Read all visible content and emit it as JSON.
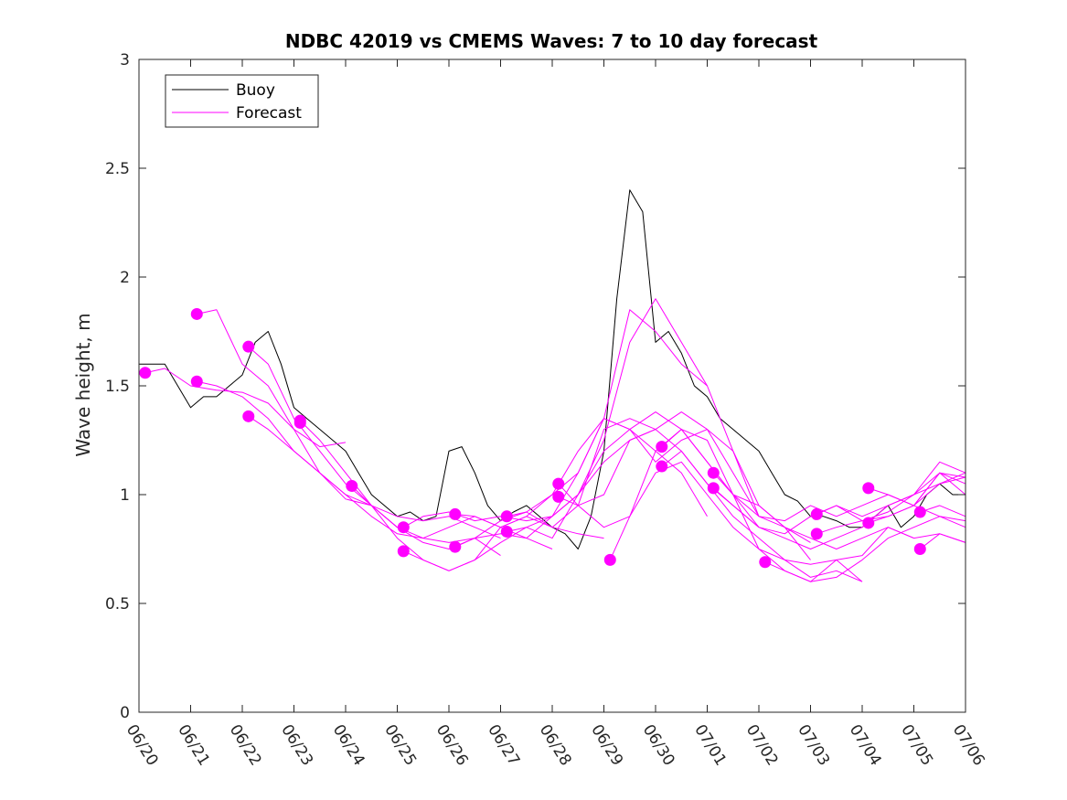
{
  "chart_data": {
    "type": "line",
    "title": "NDBC 42019 vs CMEMS Waves: 7 to 10 day forecast",
    "xlabel": "",
    "ylabel": "Wave height, m",
    "ylim": [
      0,
      3
    ],
    "yticks": [
      "0",
      "0.5",
      "1",
      "1.5",
      "2",
      "2.5",
      "3"
    ],
    "xlim_days": [
      0,
      16
    ],
    "xticks": [
      "06/20",
      "06/21",
      "06/22",
      "06/23",
      "06/24",
      "06/25",
      "06/26",
      "06/27",
      "06/28",
      "06/29",
      "06/30",
      "07/01",
      "07/02",
      "07/03",
      "07/04",
      "07/05",
      "07/06"
    ],
    "grid": false,
    "legend": {
      "position": "top-left",
      "entries": [
        "Buoy",
        "Forecast"
      ]
    },
    "colors": {
      "buoy": "#000000",
      "forecast": "#ff00ff",
      "axes": "#262626"
    },
    "series": [
      {
        "name": "Buoy",
        "x": [
          0,
          0.25,
          0.5,
          0.75,
          1.0,
          1.25,
          1.5,
          1.75,
          2.0,
          2.25,
          2.5,
          2.75,
          3.0,
          3.25,
          3.5,
          3.75,
          4.0,
          4.25,
          4.5,
          4.75,
          5.0,
          5.25,
          5.5,
          5.75,
          6.0,
          6.25,
          6.5,
          6.75,
          7.0,
          7.25,
          7.5,
          7.75,
          8.0,
          8.25,
          8.5,
          8.75,
          9.0,
          9.25,
          9.5,
          9.75,
          10.0,
          10.25,
          10.5,
          10.75,
          11.0,
          11.25,
          11.5,
          11.75,
          12.0,
          12.25,
          12.5,
          12.75,
          13.0,
          13.25,
          13.5,
          13.75,
          14.0,
          14.25,
          14.5,
          14.75,
          15.0,
          15.25,
          15.5,
          15.75,
          16.0
        ],
        "values": [
          1.6,
          1.6,
          1.6,
          1.5,
          1.4,
          1.45,
          1.45,
          1.5,
          1.55,
          1.7,
          1.75,
          1.6,
          1.4,
          1.35,
          1.3,
          1.25,
          1.2,
          1.1,
          1.0,
          0.95,
          0.9,
          0.92,
          0.88,
          0.9,
          1.2,
          1.22,
          1.1,
          0.95,
          0.88,
          0.92,
          0.95,
          0.9,
          0.85,
          0.82,
          0.75,
          0.9,
          1.2,
          1.9,
          2.4,
          2.3,
          1.7,
          1.75,
          1.65,
          1.5,
          1.45,
          1.35,
          1.3,
          1.25,
          1.2,
          1.1,
          1.0,
          0.97,
          0.9,
          0.9,
          0.88,
          0.85,
          0.85,
          0.9,
          0.95,
          0.85,
          0.9,
          1.0,
          1.05,
          1.0,
          1.0
        ]
      },
      {
        "name": "Forecast",
        "x": [
          0.12,
          0.5,
          1.0,
          1.5,
          2.0,
          2.5,
          3.0,
          3.5,
          4.0
        ],
        "values": [
          1.56,
          1.58,
          1.5,
          1.48,
          1.47,
          1.42,
          1.3,
          1.22,
          1.24
        ]
      },
      {
        "name": "Forecast",
        "x": [
          1.12,
          1.5,
          2.0,
          2.5,
          3.0,
          3.5,
          4.0,
          4.5,
          5.0
        ],
        "values": [
          1.83,
          1.85,
          1.6,
          1.5,
          1.3,
          1.1,
          0.98,
          0.95,
          0.85
        ]
      },
      {
        "name": "Forecast",
        "x": [
          1.12,
          1.5,
          2.0,
          2.5,
          3.0,
          3.5,
          4.0,
          4.5,
          5.0,
          5.5,
          6.0,
          6.5,
          7.0
        ],
        "values": [
          1.52,
          1.5,
          1.45,
          1.35,
          1.2,
          1.1,
          1.0,
          0.95,
          0.9,
          0.88,
          0.9,
          0.85,
          0.8
        ]
      },
      {
        "name": "Forecast",
        "x": [
          2.12,
          2.5,
          3.0,
          3.5,
          4.0,
          4.5,
          5.0,
          5.5,
          6.0,
          6.5,
          7.0
        ],
        "values": [
          1.68,
          1.6,
          1.35,
          1.2,
          1.05,
          0.95,
          0.85,
          0.8,
          0.78,
          0.8,
          0.72
        ]
      },
      {
        "name": "Forecast",
        "x": [
          2.12,
          2.5,
          3.0,
          3.5,
          4.0,
          4.5,
          5.0,
          5.5,
          6.0,
          6.5,
          7.0,
          7.5,
          8.0
        ],
        "values": [
          1.36,
          1.3,
          1.2,
          1.1,
          1.0,
          0.9,
          0.82,
          0.8,
          0.85,
          0.9,
          0.85,
          0.8,
          0.75
        ]
      },
      {
        "name": "Forecast",
        "x": [
          3.12,
          3.5,
          4.0,
          4.5,
          5.0,
          5.5,
          6.0,
          6.5,
          7.0,
          7.5,
          8.0,
          8.5,
          9.0
        ],
        "values": [
          1.34,
          1.25,
          1.1,
          0.95,
          0.85,
          0.78,
          0.75,
          0.8,
          0.88,
          0.92,
          0.85,
          0.82,
          0.8
        ]
      },
      {
        "name": "Forecast",
        "x": [
          4.12,
          4.5,
          5.0,
          5.5,
          6.0,
          6.5,
          7.0,
          7.5,
          8.0,
          8.5,
          9.0,
          9.5,
          10.0
        ],
        "values": [
          1.04,
          0.95,
          0.8,
          0.7,
          0.65,
          0.7,
          0.85,
          0.9,
          0.85,
          0.95,
          1.3,
          1.35,
          1.3
        ]
      },
      {
        "name": "Forecast",
        "x": [
          5.12,
          5.5,
          6.0,
          6.5,
          7.0,
          7.5,
          8.0,
          8.5,
          9.0,
          9.5,
          10.0,
          10.5,
          11.0
        ],
        "values": [
          0.74,
          0.7,
          0.65,
          0.7,
          0.78,
          0.85,
          0.8,
          1.0,
          1.25,
          1.7,
          1.9,
          1.7,
          1.5
        ]
      },
      {
        "name": "Forecast",
        "x": [
          5.12,
          5.5,
          6.0,
          6.5,
          7.0,
          7.5,
          8.0,
          8.5,
          9.0,
          9.5,
          10.0,
          10.5,
          11.0
        ],
        "values": [
          0.85,
          0.9,
          0.92,
          0.88,
          0.9,
          0.88,
          0.9,
          1.1,
          1.35,
          1.3,
          1.2,
          1.1,
          0.9
        ]
      },
      {
        "name": "Forecast",
        "x": [
          6.12,
          6.5,
          7.0,
          7.5,
          8.0,
          8.5,
          9.0,
          9.5,
          10.0,
          10.5,
          11.0,
          11.5,
          12.0
        ],
        "values": [
          0.91,
          0.9,
          0.85,
          0.9,
          1.0,
          1.2,
          1.35,
          1.3,
          1.15,
          1.25,
          1.3,
          1.2,
          0.9
        ]
      },
      {
        "name": "Forecast",
        "x": [
          6.12,
          6.5,
          7.0,
          7.5,
          8.0,
          8.5,
          9.0,
          9.5,
          10.0,
          10.5,
          11.0,
          11.5,
          12.0
        ],
        "values": [
          0.76,
          0.8,
          0.82,
          0.8,
          0.9,
          1.0,
          1.2,
          1.3,
          1.38,
          1.3,
          1.15,
          1.0,
          0.85
        ]
      },
      {
        "name": "Forecast",
        "x": [
          7.12,
          7.5,
          8.0,
          8.5,
          9.0,
          9.5,
          10.0,
          10.5,
          11.0,
          11.5,
          12.0,
          12.5,
          13.0
        ],
        "values": [
          0.9,
          0.92,
          1.0,
          1.1,
          1.35,
          1.85,
          1.75,
          1.6,
          1.5,
          1.2,
          0.95,
          0.85,
          0.7
        ]
      },
      {
        "name": "Forecast",
        "x": [
          7.12,
          7.5,
          8.0,
          8.5,
          9.0,
          9.5,
          10.0,
          10.5,
          11.0,
          11.5,
          12.0,
          12.5,
          13.0
        ],
        "values": [
          0.83,
          0.85,
          0.9,
          1.0,
          1.15,
          1.25,
          1.3,
          1.38,
          1.3,
          1.1,
          0.9,
          0.85,
          0.78
        ]
      },
      {
        "name": "Forecast",
        "x": [
          8.12,
          8.5,
          9.0,
          9.5,
          10.0,
          10.5,
          11.0,
          11.5,
          12.0,
          12.5,
          13.0,
          13.5,
          14.0
        ],
        "values": [
          1.05,
          0.95,
          0.85,
          0.9,
          1.2,
          1.3,
          1.25,
          1.0,
          0.75,
          0.65,
          0.6,
          0.7,
          0.6
        ]
      },
      {
        "name": "Forecast",
        "x": [
          8.12,
          8.5,
          9.0,
          9.5,
          10.0,
          10.5,
          11.0,
          11.5,
          12.0,
          12.5,
          13.0,
          13.5,
          14.0
        ],
        "values": [
          0.99,
          0.95,
          1.0,
          1.25,
          1.3,
          1.2,
          1.05,
          0.9,
          0.8,
          0.7,
          0.62,
          0.65,
          0.6
        ]
      },
      {
        "name": "Forecast",
        "x": [
          9.12,
          9.5,
          10.0,
          10.5,
          11.0,
          11.5,
          12.0,
          12.5,
          13.0,
          13.5,
          14.0,
          14.5,
          15.0
        ],
        "values": [
          0.7,
          0.9,
          1.1,
          1.15,
          1.0,
          0.85,
          0.75,
          0.7,
          0.68,
          0.7,
          0.72,
          0.85,
          0.8
        ]
      },
      {
        "name": "Forecast",
        "x": [
          10.12,
          10.5,
          11.0,
          11.5,
          12.0,
          12.5,
          13.0,
          13.5,
          14.0,
          14.5,
          15.0,
          15.5,
          16.0
        ],
        "values": [
          1.22,
          1.3,
          1.15,
          1.0,
          0.95,
          0.85,
          0.8,
          0.75,
          0.8,
          0.85,
          0.8,
          0.82,
          0.78
        ]
      },
      {
        "name": "Forecast",
        "x": [
          10.12,
          10.5,
          11.0,
          11.5,
          12.0,
          12.5,
          13.0,
          13.5,
          14.0,
          14.5,
          15.0,
          15.5,
          16.0
        ],
        "values": [
          1.13,
          1.2,
          1.05,
          0.95,
          0.85,
          0.8,
          0.75,
          0.8,
          0.85,
          0.95,
          1.0,
          1.1,
          1.05
        ]
      },
      {
        "name": "Forecast",
        "x": [
          11.12,
          11.5,
          12.0,
          12.5,
          13.0,
          13.5,
          14.0,
          14.5,
          15.0,
          15.5,
          16.0
        ],
        "values": [
          1.1,
          1.0,
          0.9,
          0.88,
          0.95,
          0.9,
          0.95,
          1.0,
          0.95,
          1.1,
          1.08
        ]
      },
      {
        "name": "Forecast",
        "x": [
          11.12,
          11.5,
          12.0,
          12.5,
          13.0,
          13.5,
          14.0,
          14.5,
          15.0,
          15.5,
          16.0
        ],
        "values": [
          1.03,
          0.95,
          0.85,
          0.82,
          0.9,
          0.95,
          0.88,
          0.92,
          1.0,
          1.15,
          1.1
        ]
      },
      {
        "name": "Forecast",
        "x": [
          12.12,
          12.5,
          13.0,
          13.5,
          14.0,
          14.5,
          15.0,
          15.5,
          16.0
        ],
        "values": [
          0.69,
          0.65,
          0.6,
          0.62,
          0.7,
          0.8,
          0.85,
          0.9,
          0.88
        ]
      },
      {
        "name": "Forecast",
        "x": [
          13.12,
          13.5,
          14.0,
          14.5,
          15.0,
          15.5,
          16.0
        ],
        "values": [
          0.91,
          0.95,
          0.9,
          0.95,
          1.0,
          1.05,
          1.08
        ]
      },
      {
        "name": "Forecast",
        "x": [
          13.12,
          13.5,
          14.0,
          14.5,
          15.0,
          15.5,
          16.0
        ],
        "values": [
          0.82,
          0.85,
          0.88,
          0.9,
          0.95,
          1.1,
          1.0
        ]
      },
      {
        "name": "Forecast",
        "x": [
          14.12,
          14.5,
          15.0,
          15.5,
          16.0
        ],
        "values": [
          1.03,
          1.0,
          0.95,
          0.9,
          0.85
        ]
      },
      {
        "name": "Forecast",
        "x": [
          14.12,
          14.5,
          15.0,
          15.5,
          16.0
        ],
        "values": [
          0.87,
          0.9,
          0.95,
          1.05,
          1.1
        ]
      },
      {
        "name": "Forecast",
        "x": [
          15.12,
          15.5,
          16.0
        ],
        "values": [
          0.92,
          0.95,
          0.9
        ]
      },
      {
        "name": "Forecast",
        "x": [
          15.12,
          15.5,
          16.0
        ],
        "values": [
          0.75,
          0.82,
          0.78
        ]
      }
    ],
    "markers": {
      "x": [
        0.12,
        1.12,
        1.12,
        2.12,
        2.12,
        3.12,
        3.12,
        4.12,
        5.12,
        5.12,
        6.12,
        6.12,
        7.12,
        7.12,
        8.12,
        8.12,
        9.12,
        10.12,
        10.12,
        11.12,
        11.12,
        12.12,
        13.12,
        13.12,
        14.12,
        14.12,
        15.12,
        15.12
      ],
      "values": [
        1.56,
        1.83,
        1.52,
        1.68,
        1.36,
        1.34,
        1.33,
        1.04,
        0.74,
        0.85,
        0.91,
        0.76,
        0.9,
        0.83,
        1.05,
        0.99,
        0.7,
        1.22,
        1.13,
        1.1,
        1.03,
        0.69,
        0.91,
        0.82,
        1.03,
        0.87,
        0.92,
        0.75
      ]
    }
  }
}
